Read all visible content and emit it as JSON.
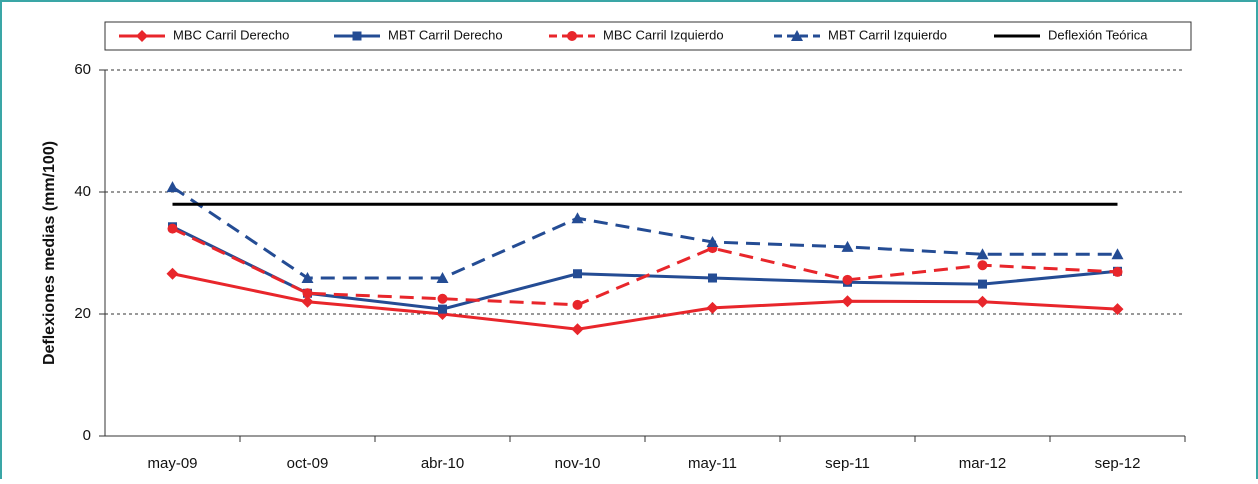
{
  "chart_data": {
    "type": "line",
    "y_label": "Deflexiones medias (mm/100)",
    "categories": [
      "may-09",
      "oct-09",
      "abr-10",
      "nov-10",
      "may-11",
      "sep-11",
      "mar-12",
      "sep-12"
    ],
    "series": [
      {
        "name": "MBC Carril Derecho",
        "color": "#e8262b",
        "dash": false,
        "marker": "diamond",
        "values": [
          26.6,
          22,
          20,
          17.5,
          21,
          22.1,
          22,
          20.8
        ]
      },
      {
        "name": "MBT Carril Derecho",
        "color": "#244c94",
        "dash": false,
        "marker": "square",
        "values": [
          34.3,
          23.4,
          20.8,
          26.6,
          25.9,
          25.2,
          24.9,
          27
        ]
      },
      {
        "name": "MBC Carril Izquierdo",
        "color": "#e8262b",
        "dash": true,
        "marker": "circle",
        "values": [
          34,
          23.4,
          22.5,
          21.5,
          30.8,
          25.6,
          28,
          26.9
        ]
      },
      {
        "name": "MBT Carril Izquierdo",
        "color": "#244c94",
        "dash": true,
        "marker": "triangle",
        "values": [
          40.8,
          25.9,
          25.9,
          35.7,
          31.8,
          31,
          29.8,
          29.8
        ]
      },
      {
        "name": "Deflexión Teórica",
        "color": "#000000",
        "dash": false,
        "marker": "none",
        "values": [
          38,
          38,
          38,
          38,
          38,
          38,
          38,
          38
        ]
      }
    ],
    "ylim": [
      0,
      60
    ],
    "yticks": [
      0,
      20,
      40,
      60
    ],
    "grid": true,
    "legend": "top"
  }
}
